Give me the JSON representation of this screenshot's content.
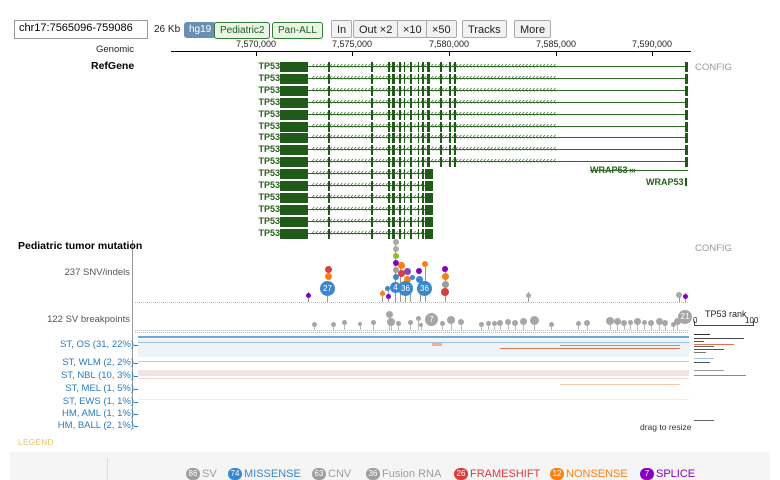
{
  "toolbar": {
    "coordinate_value": "chr17:7565096-759086",
    "span_label": "26 Kb",
    "genome_badge": "hg19",
    "track_badges": [
      "Pediatric2",
      "Pan-ALL"
    ],
    "buttons": [
      "In",
      "Out ×2",
      "×10",
      "×50",
      "Tracks",
      "More"
    ]
  },
  "ruler": {
    "label": "Genomic",
    "ticks": [
      "7,570,000",
      "7,575,000",
      "7,580,000",
      "7,585,000",
      "7,590,000"
    ]
  },
  "refgene": {
    "title": "RefGene",
    "config_label": "CONFIG",
    "tp53_label": "TP53",
    "tp53_row_count": 15,
    "wrap53_labels": [
      "WRAP53",
      "WRAP53"
    ]
  },
  "mutation_track": {
    "title": "Pediatric tumor mutation",
    "config_label": "CONFIG",
    "snv_label": "237 SNV/indels",
    "sv_label": "122 SV breakpoints",
    "lollipop_counts": [
      "27",
      "4",
      "36",
      "36"
    ],
    "sv_counts": [
      "7",
      "21"
    ],
    "rank_title": "TP53 rank",
    "rank_min": "0",
    "rank_max": "100",
    "drag_hint": "drag to resize"
  },
  "samples": [
    "ST, OS (31, 22%)",
    "ST, WLM (2, 2%)",
    "ST, NBL (10, 3%)",
    "ST, MEL (1, 5%)",
    "ST, EWS (1, 1%)",
    "HM, AML (1, 1%)",
    "HM, BALL (2, 1%)"
  ],
  "legend": {
    "title": "LEGEND",
    "items": [
      {
        "count": "86",
        "label": "SV",
        "color": "#9e9e9e"
      },
      {
        "count": "74",
        "label": "MISSENSE",
        "color": "#3987cc"
      },
      {
        "count": "63",
        "label": "CNV",
        "color": "#9e9e9e"
      },
      {
        "count": "36",
        "label": "Fusion RNA",
        "color": "#9e9e9e"
      },
      {
        "count": "26",
        "label": "FRAMESHIFT",
        "color": "#db3d3d"
      },
      {
        "count": "12",
        "label": "NONSENSE",
        "color": "#ff7f0e"
      },
      {
        "count": "7",
        "label": "SPLICE",
        "color": "#8600bf"
      }
    ]
  }
}
